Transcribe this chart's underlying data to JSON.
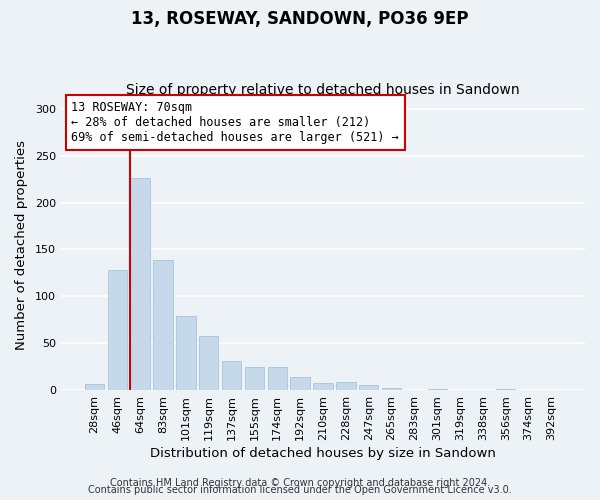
{
  "title": "13, ROSEWAY, SANDOWN, PO36 9EP",
  "subtitle": "Size of property relative to detached houses in Sandown",
  "xlabel": "Distribution of detached houses by size in Sandown",
  "ylabel": "Number of detached properties",
  "bar_labels": [
    "28sqm",
    "46sqm",
    "64sqm",
    "83sqm",
    "101sqm",
    "119sqm",
    "137sqm",
    "155sqm",
    "174sqm",
    "192sqm",
    "210sqm",
    "228sqm",
    "247sqm",
    "265sqm",
    "283sqm",
    "301sqm",
    "319sqm",
    "338sqm",
    "356sqm",
    "374sqm",
    "392sqm"
  ],
  "bar_values": [
    7,
    128,
    226,
    139,
    79,
    58,
    31,
    25,
    25,
    14,
    8,
    9,
    5,
    2,
    0,
    1,
    0,
    0,
    1,
    0,
    0
  ],
  "bar_color": "#c6d9ea",
  "bar_edge_color": "#aac4d9",
  "highlight_line_color": "#cc0000",
  "ylim": [
    0,
    310
  ],
  "yticks": [
    0,
    50,
    100,
    150,
    200,
    250,
    300
  ],
  "annotation_title": "13 ROSEWAY: 70sqm",
  "annotation_line1": "← 28% of detached houses are smaller (212)",
  "annotation_line2": "69% of semi-detached houses are larger (521) →",
  "annotation_box_color": "#ffffff",
  "annotation_box_edge": "#cc0000",
  "footer_line1": "Contains HM Land Registry data © Crown copyright and database right 2024.",
  "footer_line2": "Contains public sector information licensed under the Open Government Licence v3.0.",
  "background_color": "#edf2f7",
  "plot_background": "#edf2f7",
  "grid_color": "#ffffff",
  "title_fontsize": 12,
  "subtitle_fontsize": 10,
  "axis_label_fontsize": 9.5,
  "tick_fontsize": 8,
  "annotation_fontsize": 8.5,
  "footer_fontsize": 7
}
